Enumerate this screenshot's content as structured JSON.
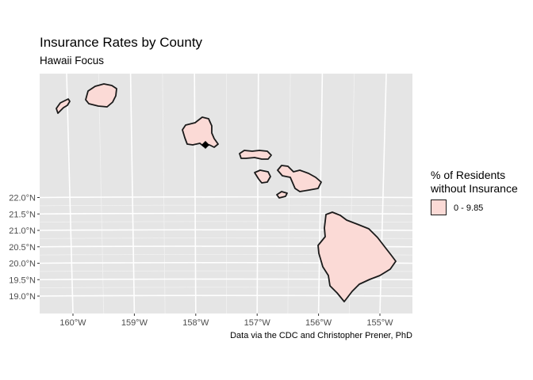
{
  "chart_data": {
    "type": "choropleth",
    "title": "Insurance Rates by County",
    "subtitle": "Hawaii Focus",
    "caption": "Data via the CDC and Christopher Prener, PhD",
    "x_ticks": [
      "160°W",
      "159°W",
      "158°W",
      "157°W",
      "156°W",
      "155°W"
    ],
    "y_ticks": [
      "22.0°N",
      "21.5°N",
      "21.0°N",
      "20.5°N",
      "20.0°N",
      "19.5°N",
      "19.0°N"
    ],
    "x_tick_values": [
      -160,
      -159,
      -158,
      -157,
      -156,
      -155
    ],
    "y_tick_values": [
      22.0,
      21.5,
      21.0,
      20.5,
      20.0,
      19.5,
      19.0
    ],
    "xlim": [
      -160.45,
      -154.55
    ],
    "ylim": [
      18.8,
      22.4
    ],
    "legend": {
      "title_lines": [
        "% of Residents",
        "without Insurance"
      ],
      "entries": [
        {
          "label": "0 - 9.85",
          "color": "#fbdad6"
        }
      ]
    },
    "point_marker": {
      "lon": -157.85,
      "lat": 21.3,
      "shape": "diamond"
    },
    "fill_color": "#fbdad6",
    "panel_background": "#e5e5e5",
    "grid_color": "#ffffff"
  }
}
